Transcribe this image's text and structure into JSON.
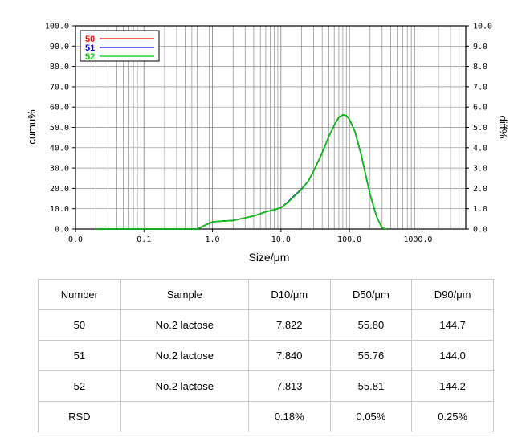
{
  "chart_data": {
    "type": "line",
    "xlabel": "Size/μm",
    "ylabel_left": "cumu%",
    "ylabel_right": "diff%",
    "x_scale": "log",
    "xlim": [
      0.01,
      5000
    ],
    "ylim_left": [
      0,
      100
    ],
    "ylim_right": [
      0,
      10
    ],
    "x_tick_labels": [
      "0.0",
      "0.1",
      "1.0",
      "10.0",
      "100.0",
      "1000.0"
    ],
    "x_tick_values": [
      0.01,
      0.1,
      1,
      10,
      100,
      1000
    ],
    "y_left_tick_labels": [
      "0.0",
      "10.0",
      "20.0",
      "30.0",
      "40.0",
      "50.0",
      "60.0",
      "70.0",
      "80.0",
      "90.0",
      "100.0"
    ],
    "y_right_tick_labels": [
      "0.0",
      "1.0",
      "2.0",
      "3.0",
      "4.0",
      "5.0",
      "6.0",
      "7.0",
      "8.0",
      "9.0",
      "10.0"
    ],
    "grid": true,
    "legend_position": "top-left",
    "series": [
      {
        "name": "50",
        "color": "#ff0000",
        "x": [
          0.02,
          0.6,
          0.8,
          1.0,
          1.5,
          2.0,
          3,
          4,
          5,
          6,
          8,
          10,
          12,
          15,
          20,
          25,
          30,
          40,
          50,
          60,
          70,
          80,
          90,
          100,
          120,
          150,
          200,
          250,
          300,
          350
        ],
        "y": [
          0.0,
          0.0,
          0.2,
          0.35,
          0.4,
          0.42,
          0.55,
          0.65,
          0.75,
          0.85,
          0.95,
          1.05,
          1.25,
          1.55,
          1.95,
          2.35,
          2.85,
          3.75,
          4.55,
          5.1,
          5.5,
          5.62,
          5.58,
          5.4,
          4.8,
          3.6,
          1.7,
          0.6,
          0.05,
          0.0
        ]
      },
      {
        "name": "51",
        "color": "#0000ff",
        "x": [
          0.02,
          0.6,
          0.8,
          1.0,
          1.5,
          2.0,
          3,
          4,
          5,
          6,
          8,
          10,
          12,
          15,
          20,
          25,
          30,
          40,
          50,
          60,
          70,
          80,
          90,
          100,
          120,
          150,
          200,
          250,
          300,
          350
        ],
        "y": [
          0.0,
          0.0,
          0.2,
          0.35,
          0.4,
          0.42,
          0.55,
          0.65,
          0.75,
          0.85,
          0.95,
          1.05,
          1.27,
          1.58,
          1.97,
          2.35,
          2.85,
          3.75,
          4.55,
          5.1,
          5.5,
          5.62,
          5.58,
          5.4,
          4.8,
          3.6,
          1.7,
          0.6,
          0.05,
          0.0
        ]
      },
      {
        "name": "52",
        "color": "#00cc00",
        "x": [
          0.02,
          0.6,
          0.8,
          1.0,
          1.5,
          2.0,
          3,
          4,
          5,
          6,
          8,
          10,
          12,
          15,
          20,
          25,
          30,
          40,
          50,
          60,
          70,
          80,
          90,
          100,
          120,
          150,
          200,
          250,
          300,
          350
        ],
        "y": [
          0.0,
          0.0,
          0.2,
          0.35,
          0.4,
          0.42,
          0.55,
          0.65,
          0.75,
          0.85,
          0.95,
          1.05,
          1.25,
          1.55,
          1.95,
          2.35,
          2.85,
          3.75,
          4.55,
          5.1,
          5.5,
          5.62,
          5.58,
          5.4,
          4.8,
          3.6,
          1.7,
          0.6,
          0.05,
          0.0
        ]
      }
    ]
  },
  "table": {
    "headers": [
      "Number",
      "Sample",
      "D10/μm",
      "D50/μm",
      "D90/μm"
    ],
    "rows": [
      [
        "50",
        "No.2 lactose",
        "7.822",
        "55.80",
        "144.7"
      ],
      [
        "51",
        "No.2 lactose",
        "7.840",
        "55.76",
        "144.0"
      ],
      [
        "52",
        "No.2 lactose",
        "7.813",
        "55.81",
        "144.2"
      ],
      [
        "RSD",
        "",
        "0.18%",
        "0.05%",
        "0.25%"
      ]
    ]
  }
}
